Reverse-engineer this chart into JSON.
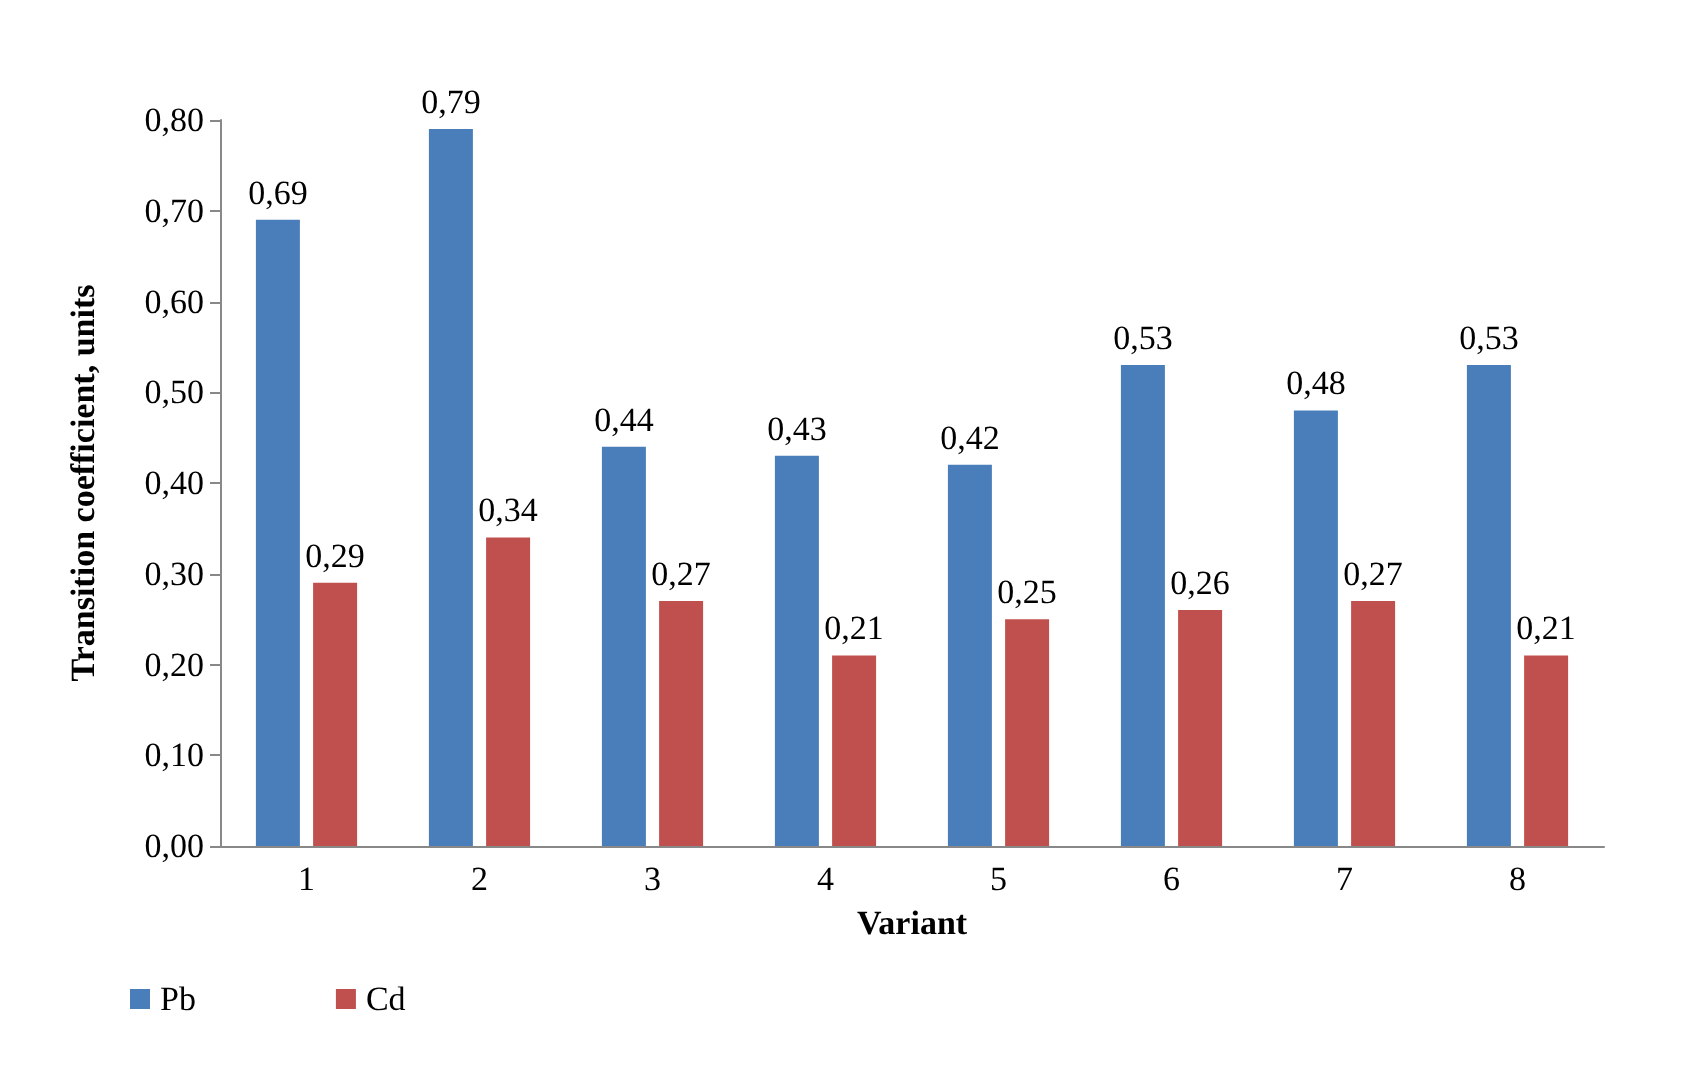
{
  "chart_data": {
    "type": "bar",
    "xlabel": "Variant",
    "ylabel": "Transition coefficient, units",
    "categories": [
      "1",
      "2",
      "3",
      "4",
      "5",
      "6",
      "7",
      "8"
    ],
    "series": [
      {
        "name": "Pb",
        "color": "#4a7ebb",
        "values": [
          0.69,
          0.79,
          0.44,
          0.43,
          0.42,
          0.53,
          0.48,
          0.53
        ],
        "value_labels": [
          "0,69",
          "0,79",
          "0,44",
          "0,43",
          "0,42",
          "0,53",
          "0,48",
          "0,53"
        ]
      },
      {
        "name": "Cd",
        "color": "#c0504d",
        "values": [
          0.29,
          0.34,
          0.27,
          0.21,
          0.25,
          0.26,
          0.27,
          0.21
        ],
        "value_labels": [
          "0,29",
          "0,34",
          "0,27",
          "0,21",
          "0,25",
          "0,26",
          "0,27",
          "0,21"
        ]
      }
    ],
    "ylim": [
      0,
      0.8
    ],
    "yticks": [
      {
        "value": 0,
        "label": "0,00"
      },
      {
        "value": 0.1,
        "label": "0,10"
      },
      {
        "value": 0.2,
        "label": "0,20"
      },
      {
        "value": 0.3,
        "label": "0,30"
      },
      {
        "value": 0.4,
        "label": "0,40"
      },
      {
        "value": 0.5,
        "label": "0,50"
      },
      {
        "value": 0.6,
        "label": "0,60"
      },
      {
        "value": 0.7,
        "label": "0,70"
      },
      {
        "value": 0.8,
        "label": "0,80"
      }
    ],
    "grid": false,
    "legend": "bottom left"
  }
}
